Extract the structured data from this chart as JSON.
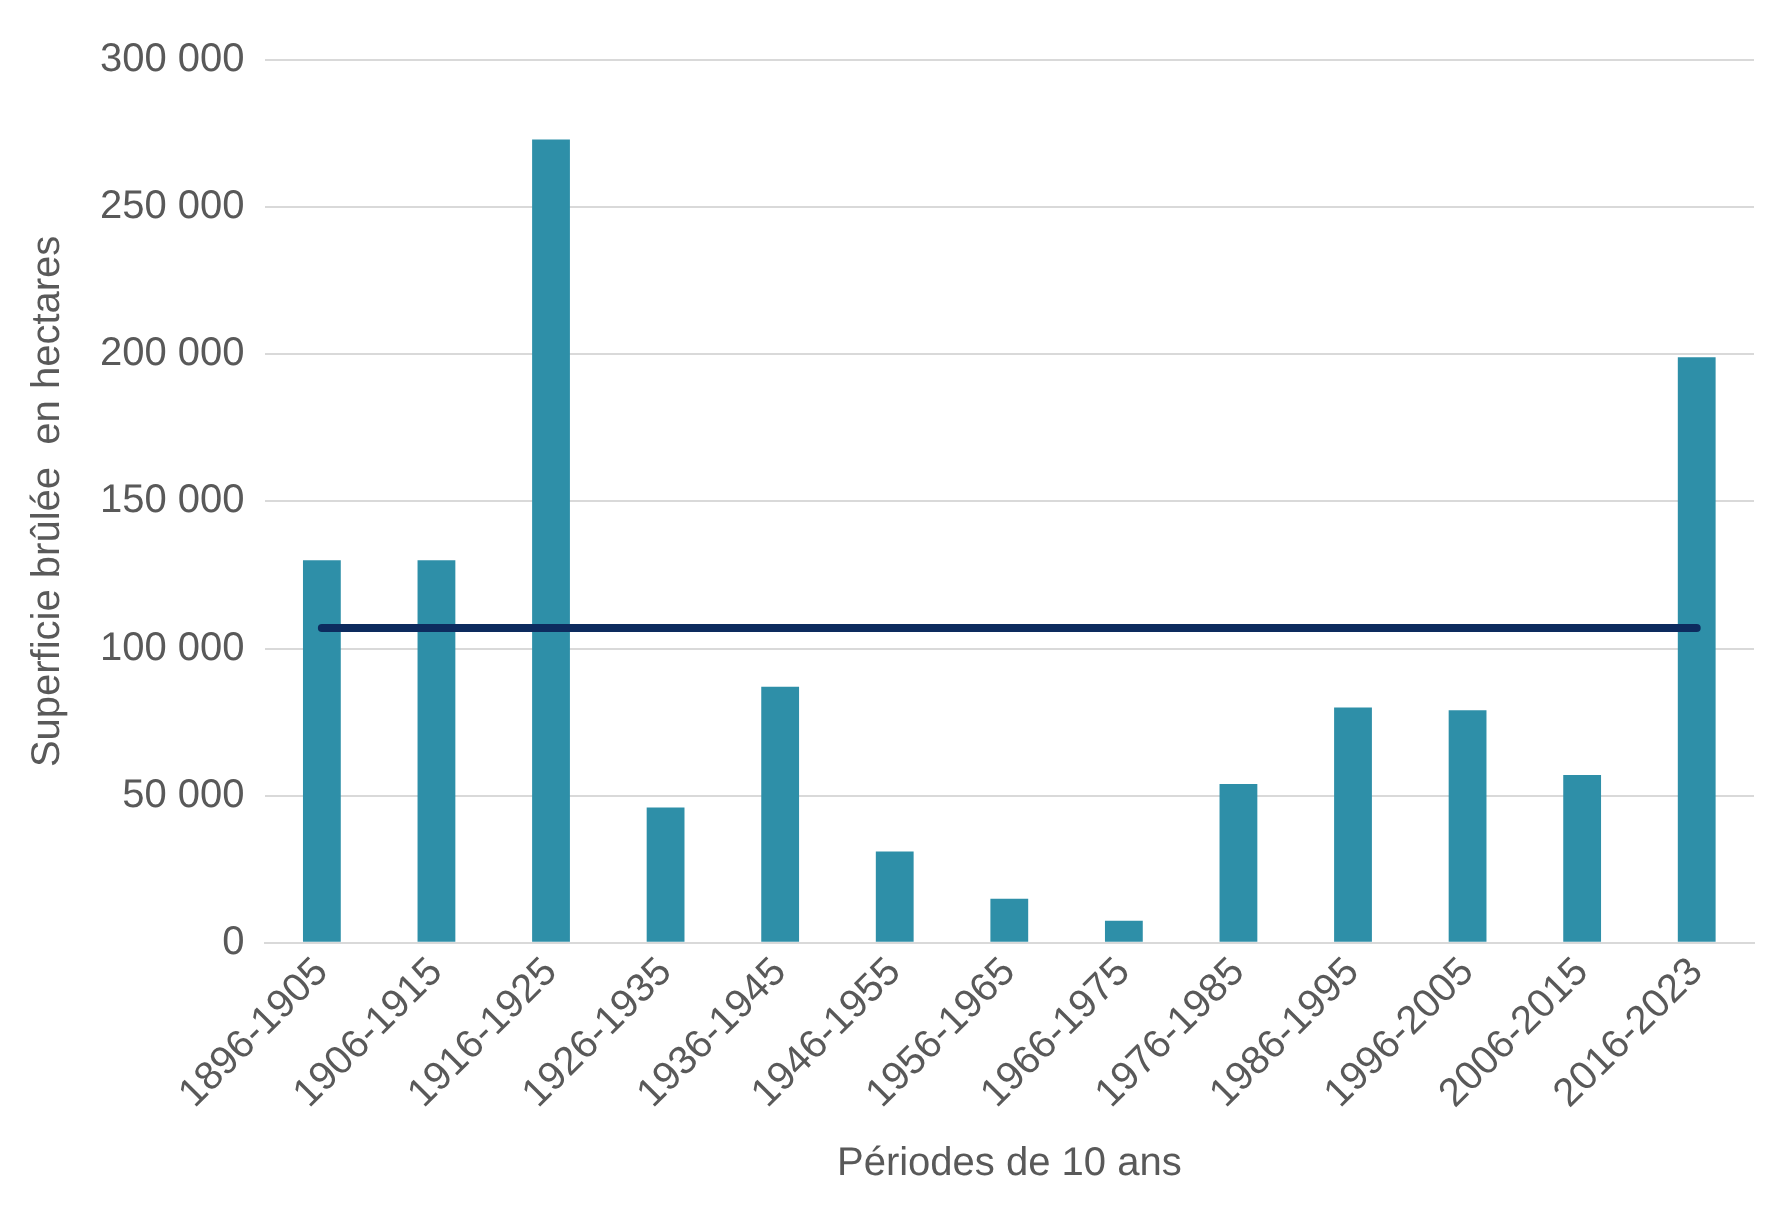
{
  "chart_data": {
    "type": "bar",
    "xlabel": "Périodes de 10 ans",
    "ylabel": "Superficie brûlée  en hectares",
    "categories": [
      "1896-1905",
      "1906-1915",
      "1916-1925",
      "1926-1935",
      "1936-1945",
      "1946-1955",
      "1956-1965",
      "1966-1975",
      "1976-1985",
      "1986-1995",
      "1996-2005",
      "2006-2015",
      "2016-2023"
    ],
    "values": [
      130000,
      130000,
      273000,
      46000,
      87000,
      31000,
      15000,
      7500,
      54000,
      80000,
      79000,
      57000,
      199000
    ],
    "color": "#2e8fa8",
    "ylim": [
      0,
      300000
    ],
    "yticks": [
      {
        "value": 0,
        "label": "0"
      },
      {
        "value": 50000,
        "label": "50 000"
      },
      {
        "value": 100000,
        "label": "100 000"
      },
      {
        "value": 150000,
        "label": "150 000"
      },
      {
        "value": 200000,
        "label": "200 000"
      },
      {
        "value": 250000,
        "label": "250 000"
      },
      {
        "value": 300000,
        "label": "300 000"
      }
    ],
    "grid": "y",
    "legend": false,
    "ref_lines": [
      {
        "axis": "y",
        "value": 107000,
        "color": "#0d2b5e"
      }
    ]
  }
}
